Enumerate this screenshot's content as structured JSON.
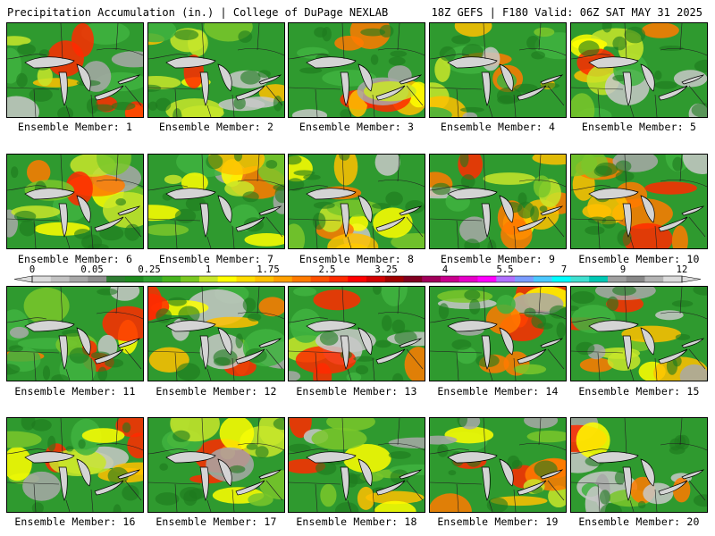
{
  "header": {
    "left_title": "Precipitation Accumulation (in.) | College of DuPage NEXLAB",
    "right_title": "18Z GEFS | F180 Valid: 06Z SAT MAY 31 2025"
  },
  "colorbar": {
    "labels": [
      "0",
      "0.05",
      "0.25",
      "1",
      "1.75",
      "2.5",
      "3.25",
      "4",
      "5.5",
      "7",
      "9",
      "12"
    ],
    "colors": [
      "#dcdcdc",
      "#c2c2c2",
      "#a8a8a8",
      "#909090",
      "#2e7d32",
      "#1e8b1e",
      "#2fa12f",
      "#46b41e",
      "#79c821",
      "#c8e62a",
      "#ffff00",
      "#ffdc00",
      "#ffc000",
      "#ffa000",
      "#ff7a00",
      "#ff5000",
      "#ff2a00",
      "#ff0000",
      "#d20000",
      "#a00000",
      "#800020",
      "#a0005a",
      "#c8008c",
      "#e600c8",
      "#ff00ff",
      "#b070ff",
      "#7a9cff",
      "#4cc8ff",
      "#00ffff",
      "#40e0d0",
      "#00c8b4",
      "#a0a0a0",
      "#888888",
      "#b4b4b4",
      "#dcdcdc"
    ]
  },
  "members": [
    {
      "caption": "Ensemble Member: 1"
    },
    {
      "caption": "Ensemble Member: 2"
    },
    {
      "caption": "Ensemble Member: 3"
    },
    {
      "caption": "Ensemble Member: 4"
    },
    {
      "caption": "Ensemble Member: 5"
    },
    {
      "caption": "Ensemble Member: 6"
    },
    {
      "caption": "Ensemble Member: 7"
    },
    {
      "caption": "Ensemble Member: 8"
    },
    {
      "caption": "Ensemble Member: 9"
    },
    {
      "caption": "Ensemble Member: 10"
    },
    {
      "caption": "Ensemble Member: 11"
    },
    {
      "caption": "Ensemble Member: 12"
    },
    {
      "caption": "Ensemble Member: 13"
    },
    {
      "caption": "Ensemble Member: 14"
    },
    {
      "caption": "Ensemble Member: 15"
    },
    {
      "caption": "Ensemble Member: 16"
    },
    {
      "caption": "Ensemble Member: 17"
    },
    {
      "caption": "Ensemble Member: 18"
    },
    {
      "caption": "Ensemble Member: 19"
    },
    {
      "caption": "Ensemble Member: 20"
    }
  ]
}
